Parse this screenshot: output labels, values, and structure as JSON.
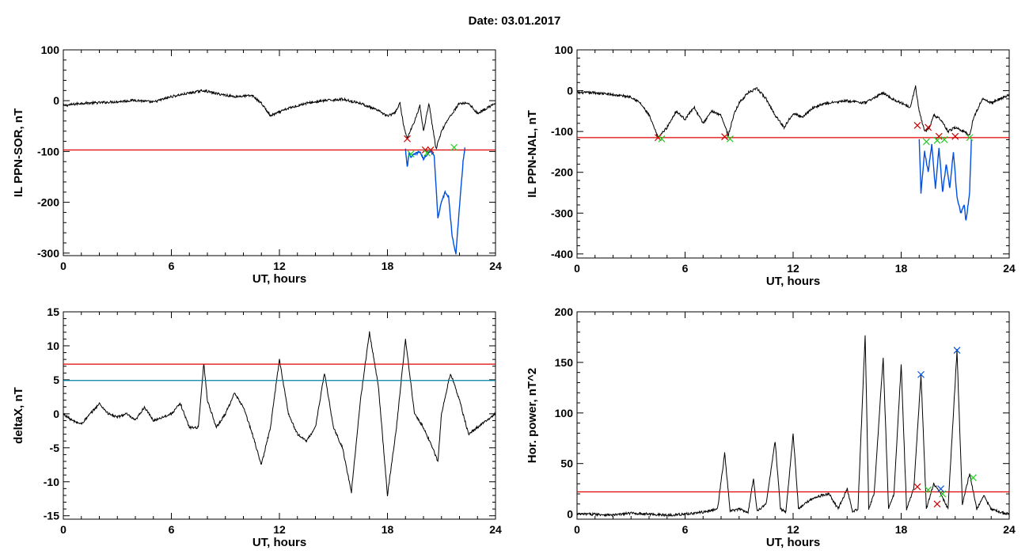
{
  "page_title": "Date:  03.01.2017",
  "chart_data": [
    {
      "type": "line",
      "ylabel": "IL PPN-SOR, nT",
      "xlabel": "UT, hours",
      "xlim": [
        0,
        24
      ],
      "ylim": [
        -305,
        100
      ],
      "x_ticks": [
        0,
        6,
        12,
        18,
        24
      ],
      "y_ticks": [
        -300,
        -200,
        -100,
        0,
        100
      ],
      "thresholds": [
        {
          "value": -97,
          "color": "#e00000"
        }
      ],
      "series": [
        {
          "color": "#000000",
          "points": [
            [
              0,
              -10
            ],
            [
              1,
              -5
            ],
            [
              2,
              -4
            ],
            [
              3,
              -2
            ],
            [
              4,
              1
            ],
            [
              5,
              -3
            ],
            [
              6,
              8
            ],
            [
              7,
              15
            ],
            [
              7.8,
              20
            ],
            [
              8.5,
              14
            ],
            [
              9.5,
              8
            ],
            [
              10.5,
              10
            ],
            [
              11,
              -5
            ],
            [
              11.5,
              -30
            ],
            [
              12.5,
              -15
            ],
            [
              13.5,
              -5
            ],
            [
              14.5,
              0
            ],
            [
              15.5,
              3
            ],
            [
              16.5,
              -5
            ],
            [
              17.5,
              -20
            ],
            [
              18,
              -30
            ],
            [
              18.4,
              -25
            ],
            [
              18.7,
              -5
            ],
            [
              18.9,
              -50
            ],
            [
              19.1,
              -75
            ],
            [
              19.5,
              -40
            ],
            [
              19.8,
              -10
            ],
            [
              20,
              -60
            ],
            [
              20.3,
              -5
            ],
            [
              20.5,
              -50
            ],
            [
              20.7,
              -95
            ],
            [
              21,
              -60
            ],
            [
              21.3,
              -40
            ],
            [
              21.6,
              -25
            ],
            [
              22,
              -5
            ],
            [
              22.5,
              -5
            ],
            [
              23,
              -25
            ],
            [
              23.5,
              -15
            ],
            [
              24,
              -5
            ]
          ]
        },
        {
          "color": "#0050e0",
          "points": [
            [
              19,
              -95
            ],
            [
              19.1,
              -130
            ],
            [
              19.2,
              -105
            ],
            [
              19.3,
              -110
            ],
            [
              19.8,
              -100
            ],
            [
              20,
              -115
            ],
            [
              20.2,
              -105
            ],
            [
              20.4,
              -98
            ],
            [
              20.6,
              -110
            ],
            [
              20.8,
              -230
            ],
            [
              21,
              -200
            ],
            [
              21.2,
              -180
            ],
            [
              21.4,
              -190
            ],
            [
              21.6,
              -270
            ],
            [
              21.8,
              -300
            ],
            [
              22,
              -210
            ],
            [
              22.2,
              -120
            ],
            [
              22.3,
              -92
            ]
          ]
        }
      ],
      "markers": [
        {
          "x": 19.1,
          "y": -75,
          "color": "#d00000"
        },
        {
          "x": 20.1,
          "y": -97,
          "color": "#d00000"
        },
        {
          "x": 20.4,
          "y": -97,
          "color": "#d00000"
        },
        {
          "x": 19.3,
          "y": -105,
          "color": "#22cc22"
        },
        {
          "x": 20.2,
          "y": -103,
          "color": "#22cc22"
        },
        {
          "x": 21.7,
          "y": -92,
          "color": "#22cc22"
        }
      ]
    },
    {
      "type": "line",
      "ylabel": "IL PPN-NAL, nT",
      "xlabel": "UT, hours",
      "xlim": [
        0,
        24
      ],
      "ylim": [
        -410,
        100
      ],
      "x_ticks": [
        0,
        6,
        12,
        18,
        24
      ],
      "y_ticks": [
        -400,
        -300,
        -200,
        -100,
        0,
        100
      ],
      "thresholds": [
        {
          "value": -115,
          "color": "#e00000"
        }
      ],
      "series": [
        {
          "color": "#000000",
          "points": [
            [
              0,
              -5
            ],
            [
              1,
              -5
            ],
            [
              2,
              -10
            ],
            [
              3,
              -15
            ],
            [
              3.5,
              -30
            ],
            [
              4,
              -60
            ],
            [
              4.5,
              -115
            ],
            [
              5,
              -90
            ],
            [
              5.5,
              -50
            ],
            [
              6,
              -70
            ],
            [
              6.5,
              -40
            ],
            [
              7,
              -80
            ],
            [
              7.5,
              -50
            ],
            [
              8,
              -60
            ],
            [
              8.4,
              -110
            ],
            [
              8.7,
              -60
            ],
            [
              9,
              -30
            ],
            [
              9.5,
              -5
            ],
            [
              10,
              5
            ],
            [
              10.5,
              -20
            ],
            [
              11,
              -60
            ],
            [
              11.5,
              -90
            ],
            [
              12,
              -55
            ],
            [
              12.5,
              -65
            ],
            [
              13,
              -45
            ],
            [
              13.5,
              -35
            ],
            [
              14,
              -30
            ],
            [
              15,
              -25
            ],
            [
              16,
              -30
            ],
            [
              17,
              -5
            ],
            [
              17.5,
              -20
            ],
            [
              18,
              -30
            ],
            [
              18.5,
              -40
            ],
            [
              18.8,
              10
            ],
            [
              19,
              -50
            ],
            [
              19.3,
              -100
            ],
            [
              19.6,
              -90
            ],
            [
              19.8,
              -60
            ],
            [
              20.2,
              -70
            ],
            [
              20.6,
              -100
            ],
            [
              21,
              -90
            ],
            [
              21.5,
              -100
            ],
            [
              21.8,
              -110
            ],
            [
              22,
              -70
            ],
            [
              22.5,
              -20
            ],
            [
              23,
              -30
            ],
            [
              23.5,
              -20
            ],
            [
              24,
              -10
            ]
          ]
        },
        {
          "color": "#0050e0",
          "points": [
            [
              19,
              -120
            ],
            [
              19.1,
              -250
            ],
            [
              19.3,
              -150
            ],
            [
              19.5,
              -200
            ],
            [
              19.7,
              -130
            ],
            [
              19.9,
              -240
            ],
            [
              20.1,
              -140
            ],
            [
              20.3,
              -250
            ],
            [
              20.5,
              -180
            ],
            [
              20.7,
              -240
            ],
            [
              20.9,
              -150
            ],
            [
              21.1,
              -260
            ],
            [
              21.3,
              -300
            ],
            [
              21.5,
              -280
            ],
            [
              21.6,
              -320
            ],
            [
              21.8,
              -250
            ],
            [
              21.9,
              -120
            ]
          ]
        }
      ],
      "markers": [
        {
          "x": 4.5,
          "y": -115,
          "color": "#d00000"
        },
        {
          "x": 8.2,
          "y": -113,
          "color": "#d00000"
        },
        {
          "x": 18.9,
          "y": -85,
          "color": "#d00000"
        },
        {
          "x": 19.5,
          "y": -90,
          "color": "#d00000"
        },
        {
          "x": 20.1,
          "y": -112,
          "color": "#d00000"
        },
        {
          "x": 21.0,
          "y": -112,
          "color": "#d00000"
        },
        {
          "x": 4.7,
          "y": -118,
          "color": "#22cc22"
        },
        {
          "x": 8.5,
          "y": -118,
          "color": "#22cc22"
        },
        {
          "x": 19.4,
          "y": -125,
          "color": "#22cc22"
        },
        {
          "x": 20.0,
          "y": -122,
          "color": "#22cc22"
        },
        {
          "x": 20.4,
          "y": -120,
          "color": "#22cc22"
        },
        {
          "x": 21.8,
          "y": -115,
          "color": "#22cc22"
        }
      ]
    },
    {
      "type": "line",
      "ylabel": "deltaX, nT",
      "xlabel": "UT, hours",
      "xlim": [
        0,
        24
      ],
      "ylim": [
        -15.5,
        15
      ],
      "x_ticks": [
        0,
        6,
        12,
        18,
        24
      ],
      "y_ticks": [
        -15,
        -10,
        -5,
        0,
        5,
        10,
        15
      ],
      "thresholds": [
        {
          "value": 7.3,
          "color": "#e00000"
        },
        {
          "value": 4.9,
          "color": "#0080a0"
        }
      ],
      "series": [
        {
          "color": "#000000",
          "points": [
            [
              0,
              0
            ],
            [
              0.5,
              -1
            ],
            [
              1,
              -1.5
            ],
            [
              1.5,
              0
            ],
            [
              2,
              1.5
            ],
            [
              2.5,
              0
            ],
            [
              3,
              -0.5
            ],
            [
              3.5,
              0
            ],
            [
              4,
              -1
            ],
            [
              4.5,
              1
            ],
            [
              5,
              -1
            ],
            [
              5.5,
              -0.5
            ],
            [
              6,
              0
            ],
            [
              6.5,
              1.5
            ],
            [
              7,
              -2
            ],
            [
              7.5,
              -2
            ],
            [
              7.8,
              7.5
            ],
            [
              8,
              2
            ],
            [
              8.5,
              -2
            ],
            [
              9,
              0
            ],
            [
              9.5,
              3
            ],
            [
              10,
              1
            ],
            [
              10.5,
              -3
            ],
            [
              11,
              -7.5
            ],
            [
              11.5,
              -2
            ],
            [
              12,
              8
            ],
            [
              12.5,
              0
            ],
            [
              13,
              -3
            ],
            [
              13.5,
              -4
            ],
            [
              14,
              -2
            ],
            [
              14.5,
              6
            ],
            [
              15,
              -2
            ],
            [
              15.5,
              -5
            ],
            [
              16,
              -11.5
            ],
            [
              16.5,
              2
            ],
            [
              17,
              12
            ],
            [
              17.5,
              4
            ],
            [
              18,
              -12
            ],
            [
              18.5,
              -2
            ],
            [
              19,
              11
            ],
            [
              19.5,
              0
            ],
            [
              20,
              -2
            ],
            [
              20.5,
              -5
            ],
            [
              20.8,
              -7
            ],
            [
              21,
              0
            ],
            [
              21.5,
              6
            ],
            [
              22,
              2
            ],
            [
              22.5,
              -3
            ],
            [
              23,
              -2
            ],
            [
              23.5,
              -1
            ],
            [
              24,
              0
            ]
          ]
        }
      ],
      "markers": []
    },
    {
      "type": "line",
      "ylabel": "Hor. power, nT^2",
      "xlabel": "UT, hours",
      "xlim": [
        0,
        24
      ],
      "ylim": [
        -5,
        200
      ],
      "x_ticks": [
        0,
        6,
        12,
        18,
        24
      ],
      "y_ticks": [
        0,
        50,
        100,
        150,
        200
      ],
      "thresholds": [
        {
          "value": 22,
          "color": "#e00000"
        }
      ],
      "series": [
        {
          "color": "#000000",
          "points": [
            [
              0,
              0
            ],
            [
              1,
              0
            ],
            [
              2,
              -1
            ],
            [
              3,
              1
            ],
            [
              4,
              0
            ],
            [
              5,
              -1
            ],
            [
              6,
              0
            ],
            [
              7,
              2
            ],
            [
              7.8,
              5
            ],
            [
              8.2,
              60
            ],
            [
              8.5,
              3
            ],
            [
              9,
              5
            ],
            [
              9.5,
              2
            ],
            [
              9.8,
              35
            ],
            [
              10,
              3
            ],
            [
              10.5,
              10
            ],
            [
              11,
              72
            ],
            [
              11.3,
              5
            ],
            [
              11.6,
              2
            ],
            [
              12,
              80
            ],
            [
              12.3,
              5
            ],
            [
              13,
              15
            ],
            [
              13.5,
              18
            ],
            [
              14,
              20
            ],
            [
              14.5,
              5
            ],
            [
              15,
              25
            ],
            [
              15.3,
              2
            ],
            [
              15.6,
              5
            ],
            [
              16,
              178
            ],
            [
              16.2,
              5
            ],
            [
              16.5,
              20
            ],
            [
              17,
              155
            ],
            [
              17.3,
              5
            ],
            [
              17.6,
              20
            ],
            [
              18,
              148
            ],
            [
              18.3,
              5
            ],
            [
              18.7,
              25
            ],
            [
              19.1,
              138
            ],
            [
              19.4,
              5
            ],
            [
              19.8,
              30
            ],
            [
              20.2,
              20
            ],
            [
              20.6,
              5
            ],
            [
              21.1,
              162
            ],
            [
              21.4,
              10
            ],
            [
              21.8,
              40
            ],
            [
              22.2,
              5
            ],
            [
              22.6,
              18
            ],
            [
              23,
              5
            ],
            [
              23.5,
              2
            ],
            [
              24,
              0
            ]
          ]
        }
      ],
      "markers": [
        {
          "x": 19.1,
          "y": 138,
          "color": "#0050e0"
        },
        {
          "x": 20.2,
          "y": 25,
          "color": "#0050e0"
        },
        {
          "x": 21.1,
          "y": 162,
          "color": "#0050e0"
        },
        {
          "x": 18.9,
          "y": 27,
          "color": "#d00000"
        },
        {
          "x": 20.0,
          "y": 10,
          "color": "#d00000"
        },
        {
          "x": 19.5,
          "y": 24,
          "color": "#22cc22"
        },
        {
          "x": 20.3,
          "y": 20,
          "color": "#22cc22"
        },
        {
          "x": 22.0,
          "y": 36,
          "color": "#22cc22"
        }
      ]
    }
  ]
}
